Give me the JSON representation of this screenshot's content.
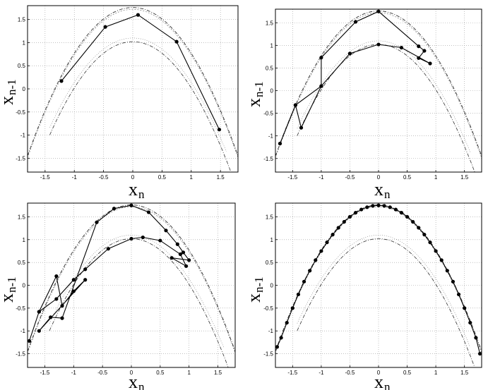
{
  "chart_data": [
    {
      "type": "line",
      "panel": "top-left",
      "xlabel": "x",
      "xlabel_sub": "n",
      "ylabel": "x",
      "ylabel_sub": "n-1",
      "xlim": [
        -1.8,
        1.8
      ],
      "ylim": [
        -1.8,
        1.8
      ],
      "xticks": [
        "-1.5",
        "-1",
        "-0.5",
        "0",
        "0.5",
        "1",
        "1.5"
      ],
      "yticks": [
        "1.5",
        "1",
        "0.5",
        "0",
        "-0.5",
        "-1",
        "-1.5"
      ],
      "grid": true,
      "x": [
        -1.22,
        -0.47,
        0.09,
        0.75,
        1.48
      ],
      "y": [
        0.17,
        1.34,
        1.6,
        1.02,
        -0.88
      ]
    },
    {
      "type": "line",
      "panel": "top-right",
      "xlabel": "x",
      "xlabel_sub": "n",
      "ylabel": "x",
      "ylabel_sub": "n-1",
      "xlim": [
        -1.8,
        1.8
      ],
      "ylim": [
        -1.8,
        1.8
      ],
      "xticks": [
        "-1.5",
        "-1",
        "-0.5",
        "0",
        "0.5",
        "1",
        "1.5"
      ],
      "yticks": [
        "1.5",
        "1",
        "0.5",
        "0",
        "-0.5",
        "-1",
        "-1.5"
      ],
      "grid": true,
      "x": [
        -1.72,
        -1.45,
        -1.35,
        -1.0,
        -1.0,
        -0.4,
        0.0,
        0.7,
        0.8,
        0.7,
        0.9,
        0.4,
        0.0,
        -0.5,
        -1.0,
        -1.45,
        -1.72
      ],
      "y": [
        -1.17,
        -0.32,
        -0.82,
        0.1,
        0.73,
        1.52,
        1.75,
        0.98,
        0.88,
        0.72,
        0.6,
        0.95,
        1.02,
        0.82,
        0.1,
        -0.32,
        -1.17
      ]
    },
    {
      "type": "line",
      "panel": "bottom-left",
      "xlabel": "x",
      "xlabel_sub": "n",
      "ylabel": "x",
      "ylabel_sub": "n-1",
      "xlim": [
        -1.8,
        1.8
      ],
      "ylim": [
        -1.8,
        1.8
      ],
      "xticks": [
        "-1.5",
        "-1",
        "-0.5",
        "0",
        "0.5",
        "1",
        "1.5"
      ],
      "yticks": [
        "1.5",
        "1",
        "0.5",
        "0",
        "-0.5",
        "-1",
        "-1.5"
      ],
      "grid": true,
      "x": [
        -1.77,
        -1.6,
        -1.3,
        -1.2,
        -1.0,
        -0.8,
        -1.6,
        -1.4,
        -1.2,
        -0.6,
        -0.3,
        0.0,
        0.3,
        0.6,
        0.8,
        0.9,
        1.0,
        0.7,
        0.95,
        0.85,
        0.5,
        0.2,
        0.0,
        -0.4,
        -0.8,
        -1.0,
        -1.3,
        -1.6
      ],
      "y": [
        -1.22,
        -0.58,
        0.2,
        -0.45,
        -0.13,
        0.12,
        -1.0,
        -0.7,
        -0.72,
        1.38,
        1.68,
        1.75,
        1.6,
        1.2,
        0.9,
        0.72,
        0.55,
        0.6,
        0.42,
        0.68,
        0.98,
        1.05,
        1.02,
        0.8,
        0.35,
        0.12,
        -0.3,
        -0.58
      ]
    },
    {
      "type": "line",
      "panel": "bottom-right",
      "xlabel": "x",
      "xlabel_sub": "n",
      "ylabel": "x",
      "ylabel_sub": "n-1",
      "xlim": [
        -1.8,
        1.8
      ],
      "ylim": [
        -1.8,
        1.8
      ],
      "xticks": [
        "-1.5",
        "-1",
        "-0.5",
        "0",
        "0.5",
        "1",
        "1.5"
      ],
      "yticks": [
        "1.5",
        "1",
        "0.5",
        "0",
        "-0.5",
        "-1",
        "-1.5"
      ],
      "grid": true,
      "x": [
        -1.77,
        -1.7,
        -1.6,
        -1.5,
        -1.4,
        -1.3,
        -1.2,
        -1.1,
        -1.0,
        -0.9,
        -0.8,
        -0.7,
        -0.6,
        -0.5,
        -0.4,
        -0.3,
        -0.2,
        -0.1,
        0.0,
        0.1,
        0.2,
        0.3,
        0.4,
        0.5,
        0.6,
        0.7,
        0.8,
        0.9,
        1.0,
        1.1,
        1.2,
        1.3,
        1.4,
        1.5,
        1.6,
        1.7,
        1.77
      ],
      "y": [
        -1.35,
        -1.15,
        -0.82,
        -0.5,
        -0.2,
        0.08,
        0.32,
        0.55,
        0.75,
        0.94,
        1.11,
        1.26,
        1.39,
        1.5,
        1.59,
        1.66,
        1.71,
        1.74,
        1.75,
        1.74,
        1.71,
        1.66,
        1.59,
        1.5,
        1.39,
        1.26,
        1.11,
        0.94,
        0.75,
        0.55,
        0.32,
        0.08,
        -0.2,
        -0.5,
        -0.82,
        -1.15,
        -1.5
      ]
    }
  ]
}
